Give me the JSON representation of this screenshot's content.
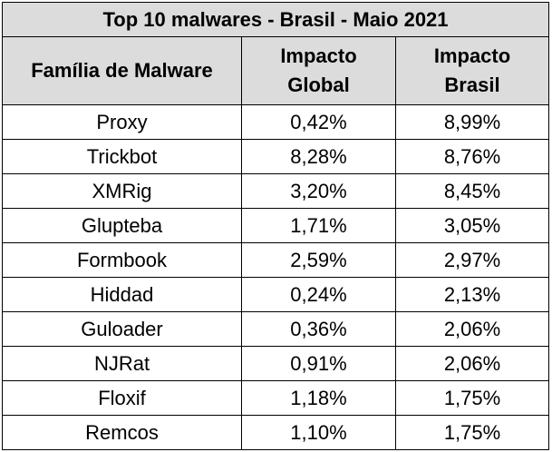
{
  "table": {
    "title": "Top 10 malwares - Brasil - Maio 2021",
    "headers": {
      "family": "Família de Malware",
      "global_line1": "Impacto",
      "global_line2": "Global",
      "brasil_line1": "Impacto",
      "brasil_line2": "Brasil"
    },
    "rows": [
      {
        "family": "Proxy",
        "global": "0,42%",
        "brasil": "8,99%"
      },
      {
        "family": "Trickbot",
        "global": "8,28%",
        "brasil": "8,76%"
      },
      {
        "family": "XMRig",
        "global": "3,20%",
        "brasil": "8,45%"
      },
      {
        "family": "Glupteba",
        "global": "1,71%",
        "brasil": "3,05%"
      },
      {
        "family": "Formbook",
        "global": "2,59%",
        "brasil": "2,97%"
      },
      {
        "family": "Hiddad",
        "global": "0,24%",
        "brasil": "2,13%"
      },
      {
        "family": "Guloader",
        "global": "0,36%",
        "brasil": "2,06%"
      },
      {
        "family": "NJRat",
        "global": "0,91%",
        "brasil": "2,06%"
      },
      {
        "family": "Floxif",
        "global": "1,18%",
        "brasil": "1,75%"
      },
      {
        "family": "Remcos",
        "global": "1,10%",
        "brasil": "1,75%"
      }
    ]
  }
}
